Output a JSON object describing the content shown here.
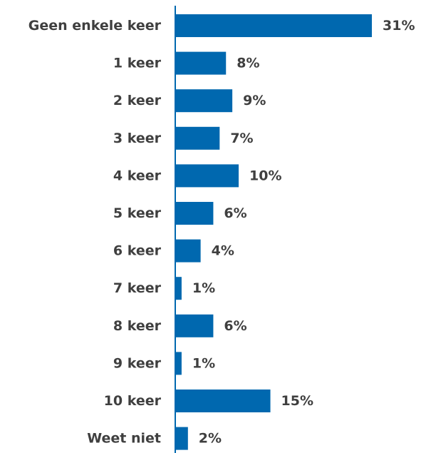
{
  "chart_data": {
    "type": "bar",
    "orientation": "horizontal",
    "categories": [
      "Geen enkele keer",
      "1 keer",
      "2 keer",
      "3 keer",
      "4 keer",
      "5 keer",
      "6 keer",
      "7 keer",
      "8 keer",
      "9 keer",
      "10 keer",
      "Weet niet"
    ],
    "values": [
      31,
      8,
      9,
      7,
      10,
      6,
      4,
      1,
      6,
      1,
      15,
      2
    ],
    "value_labels": [
      "31%",
      "8%",
      "9%",
      "7%",
      "10%",
      "6%",
      "4%",
      "1%",
      "6%",
      "1%",
      "15%",
      "2%"
    ],
    "unit": "%",
    "xlim": [
      0,
      31
    ],
    "grid": false,
    "legend": "none",
    "bar_color": "#0068AF",
    "text_color": "#3F3F3F",
    "axis_color": "#0068AF"
  }
}
